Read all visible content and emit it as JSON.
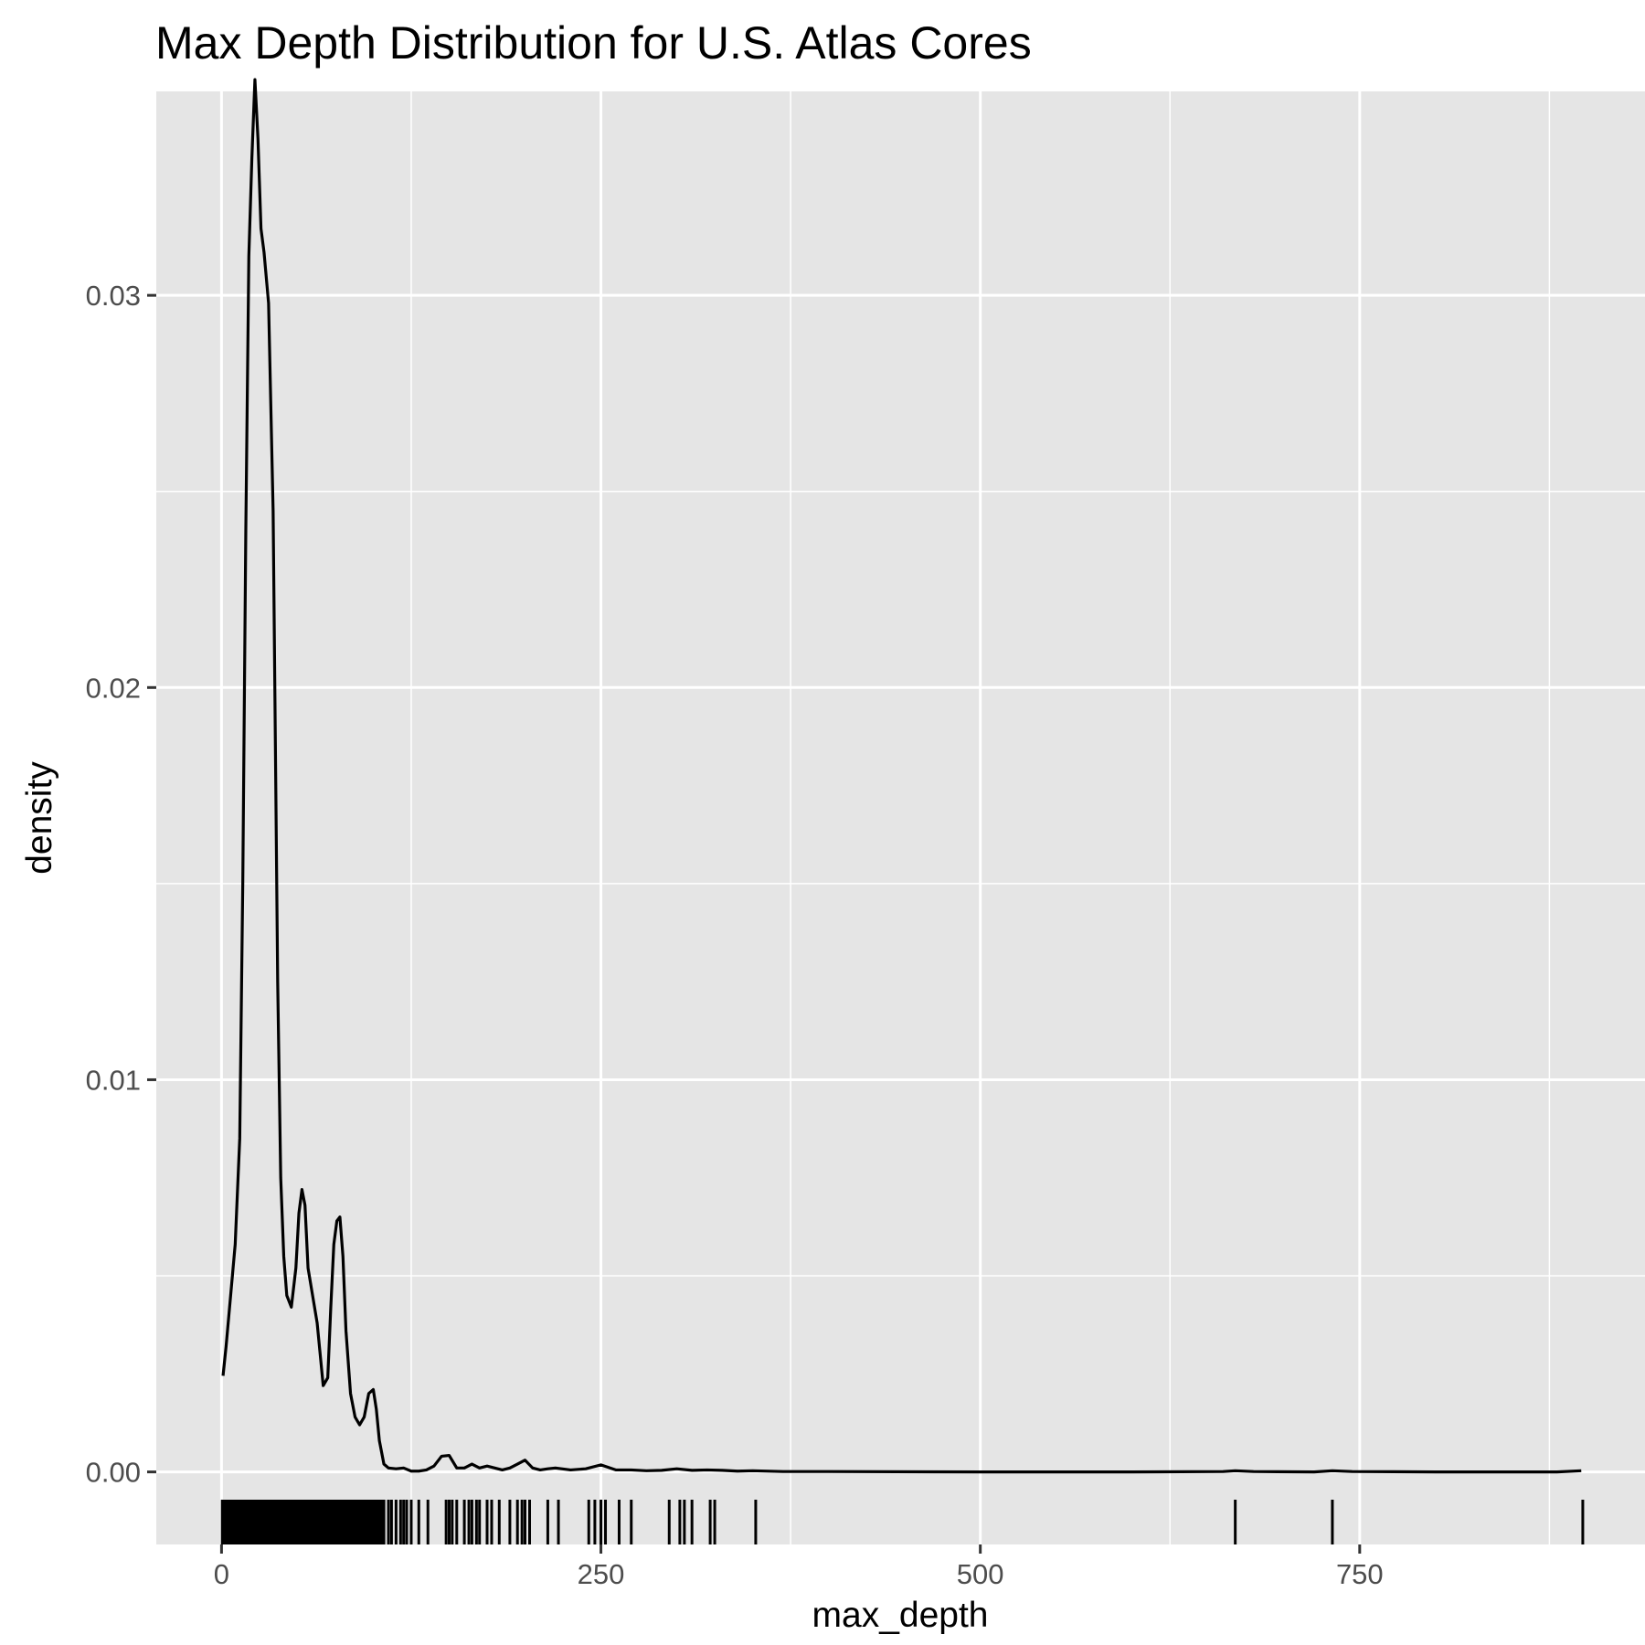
{
  "chart_data": {
    "type": "area",
    "title": "Max Depth Distribution for U.S. Atlas Cores",
    "xlabel": "max_depth",
    "ylabel": "density",
    "xlim": [
      -43,
      938
    ],
    "ylim": [
      -0.00185,
      0.0352
    ],
    "x_ticks": [
      0,
      250,
      500,
      750
    ],
    "x_tick_labels": [
      "0",
      "250",
      "500",
      "750"
    ],
    "x_minor_ticks": [
      125,
      375,
      625,
      875
    ],
    "y_ticks": [
      0,
      0.01,
      0.02,
      0.03
    ],
    "y_tick_labels": [
      "0.00",
      "0.01",
      "0.02",
      "0.03"
    ],
    "y_minor_ticks": [
      0.005,
      0.015,
      0.025
    ],
    "grid": true,
    "background": "#e5e5e5",
    "grid_color": "#ffffff",
    "line_color": "#000000",
    "series": [
      {
        "x": [
          1,
          3,
          6,
          9,
          12,
          14,
          16,
          18,
          20,
          22,
          24,
          26,
          28,
          31,
          34,
          37,
          39,
          41,
          43,
          46,
          49,
          51,
          53,
          55,
          57,
          60,
          63,
          67,
          70,
          72,
          74,
          76,
          78,
          80,
          82,
          85,
          88,
          91,
          94,
          97,
          100,
          102,
          104,
          107,
          110,
          115,
          120,
          125,
          130,
          135,
          140,
          145,
          150,
          155,
          160,
          165,
          170,
          175,
          180,
          185,
          190,
          195,
          200,
          205,
          210,
          215,
          220,
          230,
          240,
          250,
          260,
          270,
          280,
          290,
          300,
          310,
          320,
          330,
          340,
          350,
          370,
          400,
          500,
          600,
          660,
          668,
          680,
          720,
          732,
          745,
          800,
          850,
          880,
          896
        ],
        "y": [
          0.00245,
          0.0032,
          0.0045,
          0.0058,
          0.0085,
          0.015,
          0.024,
          0.031,
          0.0335,
          0.0355,
          0.034,
          0.0317,
          0.0311,
          0.0298,
          0.0245,
          0.0125,
          0.0075,
          0.0055,
          0.0045,
          0.0042,
          0.0052,
          0.0066,
          0.0072,
          0.0068,
          0.0052,
          0.0045,
          0.0038,
          0.0022,
          0.0024,
          0.0042,
          0.0058,
          0.0064,
          0.0065,
          0.0055,
          0.0036,
          0.002,
          0.0014,
          0.0012,
          0.0014,
          0.002,
          0.0021,
          0.0016,
          0.0008,
          0.0002,
          0.0001,
          8e-05,
          0.0001,
          2e-05,
          2e-05,
          5e-05,
          0.00015,
          0.0004,
          0.00042,
          0.0001,
          0.0001,
          0.0002,
          0.0001,
          0.00015,
          0.0001,
          5e-05,
          0.0001,
          0.0002,
          0.0003,
          0.0001,
          5e-05,
          8e-05,
          0.0001,
          5e-05,
          8e-05,
          0.00018,
          5e-05,
          5e-05,
          3e-05,
          4e-05,
          8e-05,
          4e-05,
          5e-05,
          4e-05,
          2e-05,
          3e-05,
          1e-05,
          1e-05,
          0,
          0,
          1e-05,
          3e-05,
          1e-05,
          0,
          3e-05,
          1e-05,
          0,
          0,
          0,
          3e-05
        ]
      }
    ],
    "rug": [
      0.5,
      1,
      1.5,
      2,
      2.5,
      3,
      3.5,
      4,
      4.5,
      5,
      5.5,
      6,
      6.5,
      7,
      7.5,
      8,
      8.5,
      9,
      9.5,
      10,
      10.5,
      11,
      11.5,
      12,
      12.5,
      13,
      13.5,
      14,
      14.5,
      15,
      15.5,
      16,
      16.5,
      17,
      17.5,
      18,
      18.5,
      19,
      19.5,
      20,
      20.5,
      21,
      21.5,
      22,
      22.5,
      23,
      23.5,
      24,
      24.5,
      25,
      25.5,
      26,
      26.5,
      27,
      27.5,
      28,
      28.5,
      29,
      29.5,
      30,
      30.5,
      31,
      31.5,
      32,
      32.5,
      33,
      33.5,
      34,
      34.5,
      35,
      35.5,
      36,
      36.5,
      37,
      37.5,
      38,
      38.5,
      39,
      39.5,
      40,
      40.5,
      41,
      41.5,
      42,
      42.5,
      43,
      43.5,
      44,
      44.5,
      45,
      45.5,
      46,
      46.5,
      47,
      47.5,
      48,
      48.5,
      49,
      49.5,
      50,
      50.5,
      51,
      51.5,
      52,
      52.5,
      53,
      53.5,
      54,
      54.5,
      55,
      55.5,
      56,
      56.5,
      57,
      57.5,
      58,
      58.5,
      59,
      59.5,
      60,
      60.5,
      61,
      61.5,
      62,
      62.5,
      63,
      63.5,
      64,
      64.5,
      65,
      65.5,
      66,
      66.5,
      67,
      67.5,
      68,
      68.5,
      69,
      69.5,
      70,
      70.5,
      71,
      71.5,
      72,
      72.5,
      73,
      73.5,
      74,
      74.5,
      75,
      75.5,
      76,
      76.5,
      77,
      77.5,
      78,
      78.5,
      79,
      79.5,
      80,
      80.5,
      81,
      81.5,
      82,
      82.5,
      83,
      83.5,
      84,
      84.5,
      85,
      85.5,
      86,
      86.5,
      87,
      87.5,
      88,
      88.5,
      89,
      89.5,
      90,
      90.5,
      91,
      91.5,
      92,
      92.5,
      93,
      93.5,
      94,
      94.5,
      95,
      95.5,
      96,
      96.5,
      97,
      97.5,
      98,
      98.5,
      99,
      99.5,
      100,
      100.5,
      101,
      101.5,
      102,
      102.5,
      103,
      103.5,
      104,
      104.5,
      105,
      105.5,
      106,
      107,
      110,
      112,
      115,
      118,
      120,
      122,
      125,
      130,
      136,
      148,
      150,
      152,
      155,
      160,
      163,
      165,
      168,
      170,
      175,
      178,
      183,
      190,
      195,
      198,
      200,
      203,
      215,
      222,
      242,
      246,
      250,
      253,
      262,
      270,
      295,
      302,
      305,
      310,
      322,
      325,
      352,
      668,
      732,
      897
    ]
  }
}
